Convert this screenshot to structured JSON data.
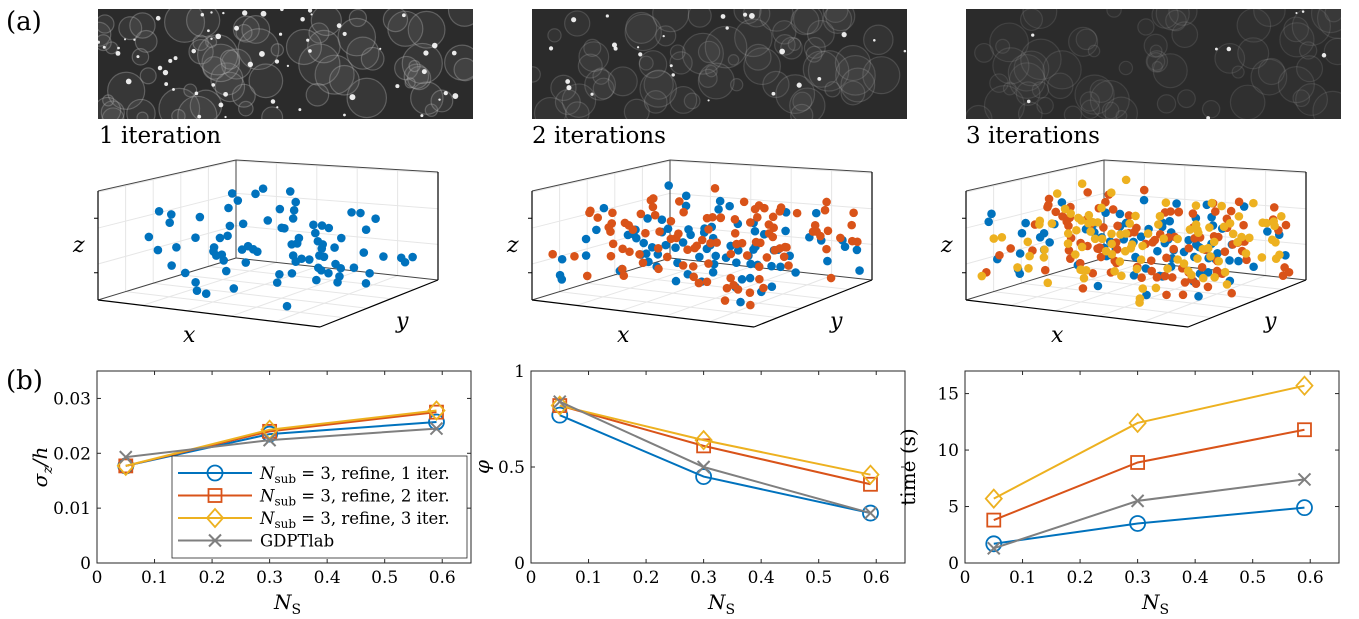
{
  "panel_labels": {
    "a": "(a)",
    "b": "(b)"
  },
  "images": [
    {
      "caption": "1 iteration"
    },
    {
      "caption": "2 iterations"
    },
    {
      "caption": "3 iterations"
    }
  ],
  "scatter3d": {
    "xlabel": "x",
    "ylabel": "y",
    "zlabel": "z",
    "colors": [
      "#0072BD",
      "#D95319",
      "#EDB120"
    ]
  },
  "chart_data": [
    {
      "type": "line",
      "ylabel": "σz/h",
      "xlabel": "NS",
      "xlim": [
        0,
        0.65
      ],
      "ylim": [
        0,
        0.035
      ],
      "xticks": [
        "0",
        "0.1",
        "0.2",
        "0.3",
        "0.4",
        "0.5",
        "0.6"
      ],
      "yticks": [
        "0",
        "0.01",
        "0.02",
        "0.03"
      ],
      "x": [
        0.05,
        0.3,
        0.59
      ],
      "series": [
        {
          "name": "Nsub = 3, refine, 1 iter.",
          "values": [
            0.0177,
            0.0235,
            0.0257
          ],
          "color": "#0072BD",
          "marker": "circle"
        },
        {
          "name": "Nsub = 3, refine, 2 iter.",
          "values": [
            0.0177,
            0.024,
            0.0275
          ],
          "color": "#D95319",
          "marker": "square"
        },
        {
          "name": "Nsub = 3, refine, 3 iter.",
          "values": [
            0.0177,
            0.0243,
            0.0278
          ],
          "color": "#EDB120",
          "marker": "diamond"
        },
        {
          "name": "GDPTlab",
          "values": [
            0.0193,
            0.0224,
            0.0245
          ],
          "color": "#7F7F7F",
          "marker": "x"
        }
      ],
      "legend": {
        "position": "bottom-right",
        "entries": [
          {
            "main": "N",
            "sub": "sub",
            "rest": " = 3, refine, 1 iter."
          },
          {
            "main": "N",
            "sub": "sub",
            "rest": " = 3, refine, 2 iter."
          },
          {
            "main": "N",
            "sub": "sub",
            "rest": " = 3, refine, 3 iter."
          },
          {
            "main": "GDPTlab",
            "sub": "",
            "rest": ""
          }
        ]
      }
    },
    {
      "type": "line",
      "ylabel": "φ",
      "xlabel": "NS",
      "xlim": [
        0,
        0.65
      ],
      "ylim": [
        0,
        1
      ],
      "xticks": [
        "0",
        "0.1",
        "0.2",
        "0.3",
        "0.4",
        "0.5",
        "0.6"
      ],
      "yticks": [
        "0",
        "0.5",
        "1"
      ],
      "x": [
        0.05,
        0.3,
        0.59
      ],
      "series": [
        {
          "name": "Nsub = 3, refine, 1 iter.",
          "values": [
            0.77,
            0.45,
            0.26
          ],
          "color": "#0072BD",
          "marker": "circle"
        },
        {
          "name": "Nsub = 3, refine, 2 iter.",
          "values": [
            0.82,
            0.61,
            0.41
          ],
          "color": "#D95319",
          "marker": "square"
        },
        {
          "name": "Nsub = 3, refine, 3 iter.",
          "values": [
            0.82,
            0.64,
            0.46
          ],
          "color": "#EDB120",
          "marker": "diamond"
        },
        {
          "name": "GDPTlab",
          "values": [
            0.84,
            0.5,
            0.26
          ],
          "color": "#7F7F7F",
          "marker": "x"
        }
      ]
    },
    {
      "type": "line",
      "ylabel": "time (s)",
      "xlabel": "NS",
      "xlim": [
        0,
        0.65
      ],
      "ylim": [
        0,
        17
      ],
      "xticks": [
        "0",
        "0.1",
        "0.2",
        "0.3",
        "0.4",
        "0.5",
        "0.6"
      ],
      "yticks": [
        "0",
        "5",
        "10",
        "15"
      ],
      "x": [
        0.05,
        0.3,
        0.59
      ],
      "series": [
        {
          "name": "Nsub = 3, refine, 1 iter.",
          "values": [
            1.7,
            3.5,
            4.9
          ],
          "color": "#0072BD",
          "marker": "circle"
        },
        {
          "name": "Nsub = 3, refine, 2 iter.",
          "values": [
            3.8,
            8.9,
            11.8
          ],
          "color": "#D95319",
          "marker": "square"
        },
        {
          "name": "Nsub = 3, refine, 3 iter.",
          "values": [
            5.7,
            12.4,
            15.7
          ],
          "color": "#EDB120",
          "marker": "diamond"
        },
        {
          "name": "GDPTlab",
          "values": [
            1.3,
            5.5,
            7.4
          ],
          "color": "#7F7F7F",
          "marker": "x"
        }
      ]
    }
  ]
}
